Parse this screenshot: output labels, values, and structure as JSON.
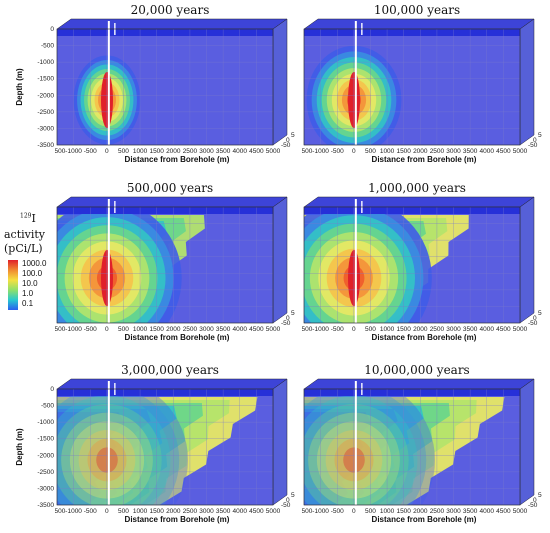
{
  "panels": [
    {
      "title": "20,000 years",
      "spread": 0.22,
      "bg": 0.0,
      "front": 0.0
    },
    {
      "title": "100,000 years",
      "spread": 0.42,
      "bg": 0.0,
      "front": 0.0
    },
    {
      "title": "500,000 years",
      "spread": 0.9,
      "bg": 0.25,
      "front": 0.55
    },
    {
      "title": "1,000,000 years",
      "spread": 0.95,
      "bg": 0.3,
      "front": 0.7
    },
    {
      "title": "3,000,000 years",
      "spread": 1.0,
      "bg": 0.55,
      "front": 1.0
    },
    {
      "title": "10,000,000 years",
      "spread": 1.0,
      "bg": 0.45,
      "front": 1.0
    }
  ],
  "axes": {
    "xlabel": "Distance from Borehole (m)",
    "ylabel": "Depth (m)",
    "xticks": [
      "-1500",
      "-1000",
      "-500",
      "0",
      "500",
      "1000",
      "1500",
      "2000",
      "2500",
      "3000",
      "3500",
      "4000",
      "4500",
      "5000"
    ],
    "yticks": [
      "0",
      "-500",
      "-1000",
      "-1500",
      "-2000",
      "-2500",
      "-3000",
      "-3500"
    ],
    "zticks": [
      "50",
      "0",
      "-50"
    ]
  },
  "legend": {
    "isotope_mass": "129",
    "isotope_symbol": "I",
    "title": "activity",
    "units": "(pCi/L)",
    "values": [
      "1000.0",
      "100.0",
      "10.0",
      "1.0",
      "0.1"
    ]
  }
}
